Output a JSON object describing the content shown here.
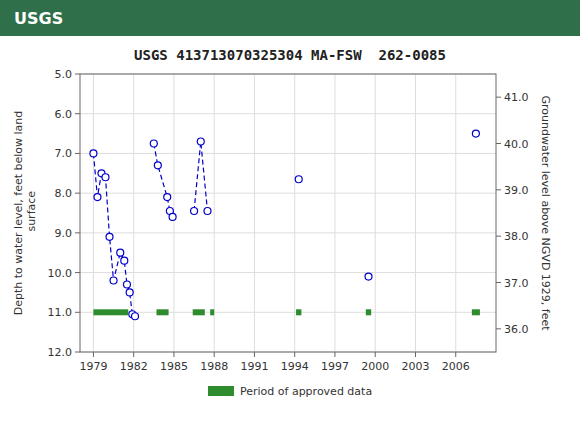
{
  "chart_data": {
    "type": "scatter",
    "title": "USGS 413713070325304 MA-FSW  262-0085",
    "annotations": [
      {
        "text": "USGS"
      }
    ],
    "y_label": "Depth to water level, feet below land\n surface",
    "y2_label": "Groundwater level above NGVD 1929, feet",
    "xlim": [
      1978.0,
      2009.0
    ],
    "xticks": [
      1979,
      1982,
      1985,
      1988,
      1991,
      1994,
      1997,
      2000,
      2003,
      2006
    ],
    "ylim": [
      12.0,
      5.0
    ],
    "yticks": [
      {
        "value": 5.0,
        "label": "5.0"
      },
      {
        "value": 6.0,
        "label": "6.0"
      },
      {
        "value": 7.0,
        "label": "7.0"
      },
      {
        "value": 8.0,
        "label": "8.0"
      },
      {
        "value": 9.0,
        "label": "9.0"
      },
      {
        "value": 10.0,
        "label": "10.0"
      },
      {
        "value": 11.0,
        "label": "11.0"
      },
      {
        "value": 12.0,
        "label": "12.0"
      }
    ],
    "y2lim": [
      35.5,
      41.5
    ],
    "y2ticks": [
      {
        "value": 36.0,
        "label": "36.0"
      },
      {
        "value": 37.0,
        "label": "37.0"
      },
      {
        "value": 38.0,
        "label": "38.0"
      },
      {
        "value": 39.0,
        "label": "39.0"
      },
      {
        "value": 40.0,
        "label": "40.0"
      },
      {
        "value": 41.0,
        "label": "41.0"
      }
    ],
    "grid": true,
    "legend": "bottom",
    "series": [
      {
        "type": "line",
        "color": "#0000cc",
        "marker": "open_circle",
        "line_style": "dashed",
        "x": [
          1979.0,
          1979.3,
          1979.6,
          1979.9,
          1980.2,
          1980.5,
          1981.0,
          1981.3,
          1981.5,
          1981.7,
          1981.9,
          1982.1
        ],
        "values": [
          7.0,
          8.1,
          7.5,
          7.6,
          9.1,
          10.2,
          9.5,
          9.7,
          10.3,
          10.5,
          11.05,
          11.1
        ]
      },
      {
        "type": "line",
        "color": "#0000cc",
        "marker": "open_circle",
        "line_style": "dashed",
        "x": [
          1983.5,
          1983.8,
          1984.5,
          1984.7,
          1984.9
        ],
        "values": [
          6.75,
          7.3,
          8.1,
          8.45,
          8.6
        ]
      },
      {
        "type": "line",
        "color": "#0000cc",
        "marker": "open_circle",
        "line_style": "dashed",
        "x": [
          1986.5,
          1987.0,
          1987.5
        ],
        "values": [
          8.45,
          6.7,
          8.45
        ]
      },
      {
        "type": "line",
        "color": "#0000cc",
        "marker": "open_circle",
        "line_style": "none",
        "x": [
          1994.3,
          1999.5,
          2007.5
        ],
        "values": [
          7.65,
          10.1,
          6.5
        ]
      },
      {
        "type": "range",
        "name": "Period of approved data",
        "color": "#2e8b2e",
        "x": [
          1979.0,
          1983.7,
          1986.4,
          1987.7,
          1994.1,
          1999.3,
          2007.2
        ],
        "x_end": [
          1981.6,
          1984.6,
          1987.3,
          1988.0,
          1994.5,
          1999.7,
          2007.8
        ],
        "values": [
          11.0,
          11.0,
          11.0,
          11.0,
          11.0,
          11.0,
          11.0
        ]
      }
    ]
  }
}
